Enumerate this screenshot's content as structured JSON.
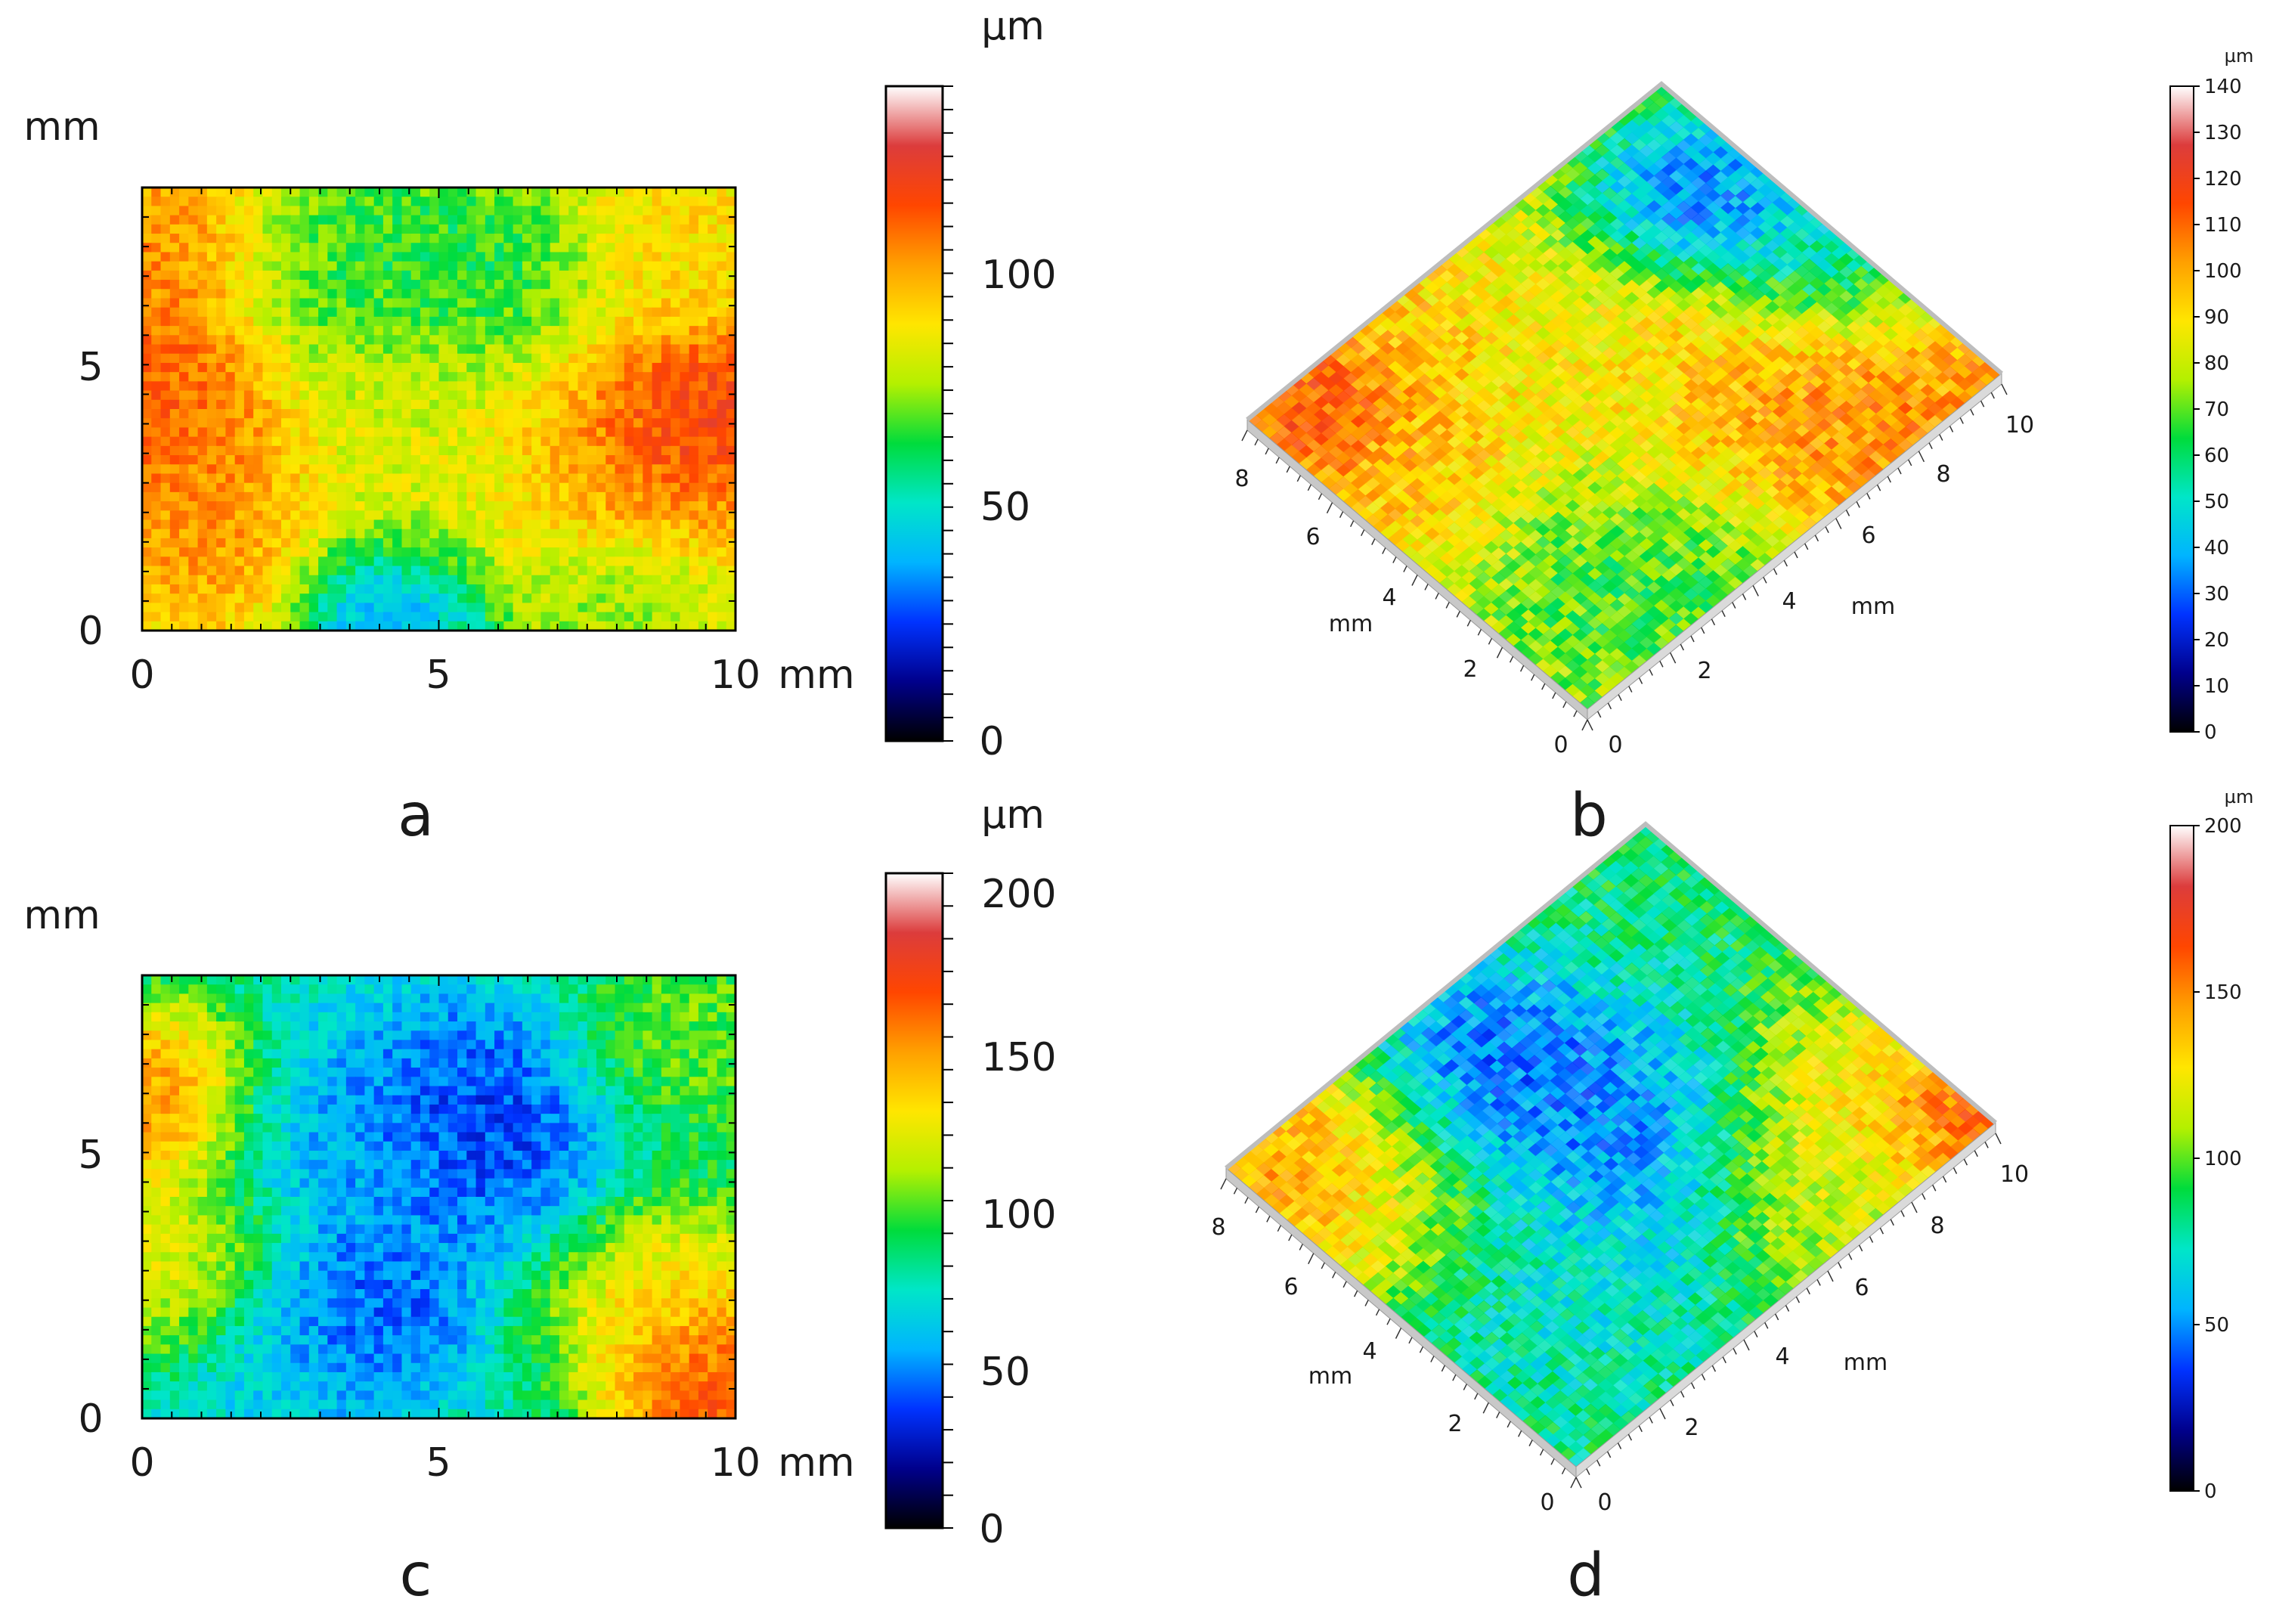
{
  "colormap": [
    "#000000",
    "#00008c",
    "#0033ff",
    "#00b4ff",
    "#00e6c8",
    "#00dc3c",
    "#b4f000",
    "#ffe600",
    "#ffa000",
    "#ff4600",
    "#dc3c3c",
    "#ffffff"
  ],
  "panels": [
    {
      "label": "a",
      "kind": "2d",
      "y_unit": "mm",
      "x_unit": "mm",
      "x_ticks": [
        "0",
        "5",
        "10"
      ],
      "y_ticks": [
        "0",
        "5"
      ],
      "cbar_unit": "µm",
      "cbar_ticks": [
        "0",
        "50",
        "100"
      ]
    },
    {
      "label": "b",
      "kind": "3d",
      "axis_unit_left": "mm",
      "axis_unit_right": "mm",
      "left_ticks": [
        "0",
        "2",
        "4",
        "6",
        "8"
      ],
      "right_ticks": [
        "0",
        "2",
        "4",
        "6",
        "8",
        "10"
      ],
      "cbar_unit": "µm",
      "cbar_ticks": [
        "0",
        "10",
        "20",
        "30",
        "40",
        "50",
        "60",
        "70",
        "80",
        "90",
        "100",
        "110",
        "120",
        "130",
        "140"
      ]
    },
    {
      "label": "c",
      "kind": "2d",
      "y_unit": "mm",
      "x_unit": "mm",
      "x_ticks": [
        "0",
        "5",
        "10"
      ],
      "y_ticks": [
        "0",
        "5"
      ],
      "cbar_unit": "µm",
      "cbar_ticks": [
        "0",
        "50",
        "100",
        "150",
        "200"
      ]
    },
    {
      "label": "d",
      "kind": "3d",
      "axis_unit_left": "mm",
      "axis_unit_right": "mm",
      "left_ticks": [
        "0",
        "2",
        "4",
        "6",
        "8"
      ],
      "right_ticks": [
        "0",
        "2",
        "4",
        "6",
        "8",
        "10"
      ],
      "cbar_unit": "µm",
      "cbar_ticks": [
        "0",
        "50",
        "100",
        "150",
        "200"
      ]
    }
  ],
  "chart_data": [
    {
      "type": "heatmap",
      "panel": "a",
      "x_range": [
        0,
        10
      ],
      "y_range": [
        0,
        8.4
      ],
      "xlabel": "mm",
      "ylabel": "mm",
      "value_unit": "µm",
      "value_range": [
        0,
        140
      ],
      "height_blobs": [
        {
          "x": 0.6,
          "y": 7.3,
          "value": 110,
          "spread": 1.4
        },
        {
          "x": 0.5,
          "y": 4.5,
          "value": 118,
          "spread": 1.6
        },
        {
          "x": 1.0,
          "y": 2.2,
          "value": 106,
          "spread": 1.6
        },
        {
          "x": 3.3,
          "y": 7.0,
          "value": 62,
          "spread": 1.8
        },
        {
          "x": 5.8,
          "y": 6.6,
          "value": 58,
          "spread": 1.7
        },
        {
          "x": 5.5,
          "y": 3.0,
          "value": 84,
          "spread": 2.2
        },
        {
          "x": 4.2,
          "y": 4.2,
          "value": 80,
          "spread": 1.5
        },
        {
          "x": 8.3,
          "y": 3.6,
          "value": 118,
          "spread": 1.8
        },
        {
          "x": 9.5,
          "y": 4.2,
          "value": 124,
          "spread": 1.1
        },
        {
          "x": 9.0,
          "y": 7.3,
          "value": 92,
          "spread": 1.6
        },
        {
          "x": 4.3,
          "y": 0.3,
          "value": 22,
          "spread": 1.3
        },
        {
          "x": 8.0,
          "y": 0.5,
          "value": 70,
          "spread": 1.3
        }
      ],
      "base_value": 85
    },
    {
      "type": "surface3d",
      "panel": "b",
      "x_range": [
        0,
        10
      ],
      "y_range": [
        0,
        8
      ],
      "value_unit": "µm",
      "value_range": [
        0,
        140
      ],
      "height_blobs": [
        {
          "x": 8.0,
          "y": 1.0,
          "value": 112,
          "spread": 2.2
        },
        {
          "x": 6.0,
          "y": 3.0,
          "value": 104,
          "spread": 2.0
        },
        {
          "x": 2.0,
          "y": 6.5,
          "value": 102,
          "spread": 2.4
        },
        {
          "x": 1.0,
          "y": 7.5,
          "value": 128,
          "spread": 1.1
        },
        {
          "x": 5.0,
          "y": 4.5,
          "value": 82,
          "spread": 2.0
        },
        {
          "x": 2.8,
          "y": 1.5,
          "value": 62,
          "spread": 2.0
        },
        {
          "x": 8.8,
          "y": 5.8,
          "value": 22,
          "spread": 1.5
        },
        {
          "x": 9.5,
          "y": 3.5,
          "value": 42,
          "spread": 1.6
        }
      ],
      "base_value": 80
    },
    {
      "type": "heatmap",
      "panel": "c",
      "x_range": [
        0,
        10
      ],
      "y_range": [
        0,
        8.4
      ],
      "xlabel": "mm",
      "ylabel": "mm",
      "value_unit": "µm",
      "value_range": [
        0,
        200
      ],
      "height_blobs": [
        {
          "x": 0.3,
          "y": 6.0,
          "value": 165,
          "spread": 1.4
        },
        {
          "x": 0.6,
          "y": 3.0,
          "value": 130,
          "spread": 1.5
        },
        {
          "x": 9.6,
          "y": 0.6,
          "value": 185,
          "spread": 1.3
        },
        {
          "x": 9.0,
          "y": 2.0,
          "value": 140,
          "spread": 1.6
        },
        {
          "x": 9.3,
          "y": 7.3,
          "value": 105,
          "spread": 1.6
        },
        {
          "x": 5.6,
          "y": 5.6,
          "value": 28,
          "spread": 1.7
        },
        {
          "x": 3.6,
          "y": 2.0,
          "value": 30,
          "spread": 1.4
        },
        {
          "x": 3.2,
          "y": 5.2,
          "value": 52,
          "spread": 1.8
        },
        {
          "x": 2.5,
          "y": 1.0,
          "value": 60,
          "spread": 1.5
        }
      ],
      "base_value": 75
    },
    {
      "type": "surface3d",
      "panel": "d",
      "x_range": [
        0,
        10
      ],
      "y_range": [
        0,
        8
      ],
      "value_unit": "µm",
      "value_range": [
        0,
        200
      ],
      "height_blobs": [
        {
          "x": 0.5,
          "y": 7.5,
          "value": 160,
          "spread": 1.8
        },
        {
          "x": 1.5,
          "y": 6.0,
          "value": 130,
          "spread": 1.8
        },
        {
          "x": 9.5,
          "y": 0.5,
          "value": 185,
          "spread": 1.1
        },
        {
          "x": 8.8,
          "y": 1.5,
          "value": 135,
          "spread": 1.8
        },
        {
          "x": 7.0,
          "y": 1.0,
          "value": 120,
          "spread": 1.8
        },
        {
          "x": 5.0,
          "y": 4.0,
          "value": 40,
          "spread": 2.0
        },
        {
          "x": 4.5,
          "y": 6.2,
          "value": 35,
          "spread": 1.6
        },
        {
          "x": 2.5,
          "y": 3.0,
          "value": 70,
          "spread": 2.0
        }
      ],
      "base_value": 85
    }
  ]
}
